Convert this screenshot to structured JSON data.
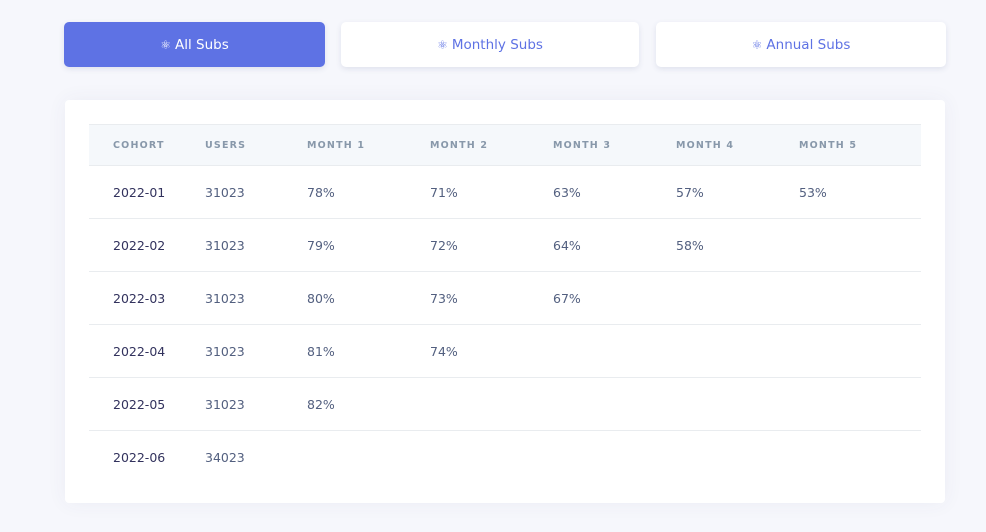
{
  "tabs": [
    {
      "label": "All Subs",
      "icon": "atom-icon",
      "active": true
    },
    {
      "label": "Monthly Subs",
      "icon": "atom-icon",
      "active": false
    },
    {
      "label": "Annual Subs",
      "icon": "atom-icon",
      "active": false
    }
  ],
  "accent_color": "#5e72e4",
  "table": {
    "headers": [
      "COHORT",
      "USERS",
      "MONTH 1",
      "MONTH 2",
      "MONTH 3",
      "MONTH 4",
      "MONTH 5"
    ],
    "rows": [
      [
        "2022-01",
        "31023",
        "78%",
        "71%",
        "63%",
        "57%",
        "53%"
      ],
      [
        "2022-02",
        "31023",
        "79%",
        "72%",
        "64%",
        "58%",
        ""
      ],
      [
        "2022-03",
        "31023",
        "80%",
        "73%",
        "67%",
        "",
        ""
      ],
      [
        "2022-04",
        "31023",
        "81%",
        "74%",
        "",
        "",
        ""
      ],
      [
        "2022-05",
        "31023",
        "82%",
        "",
        "",
        "",
        ""
      ],
      [
        "2022-06",
        "34023",
        "",
        "",
        "",
        "",
        ""
      ]
    ]
  }
}
